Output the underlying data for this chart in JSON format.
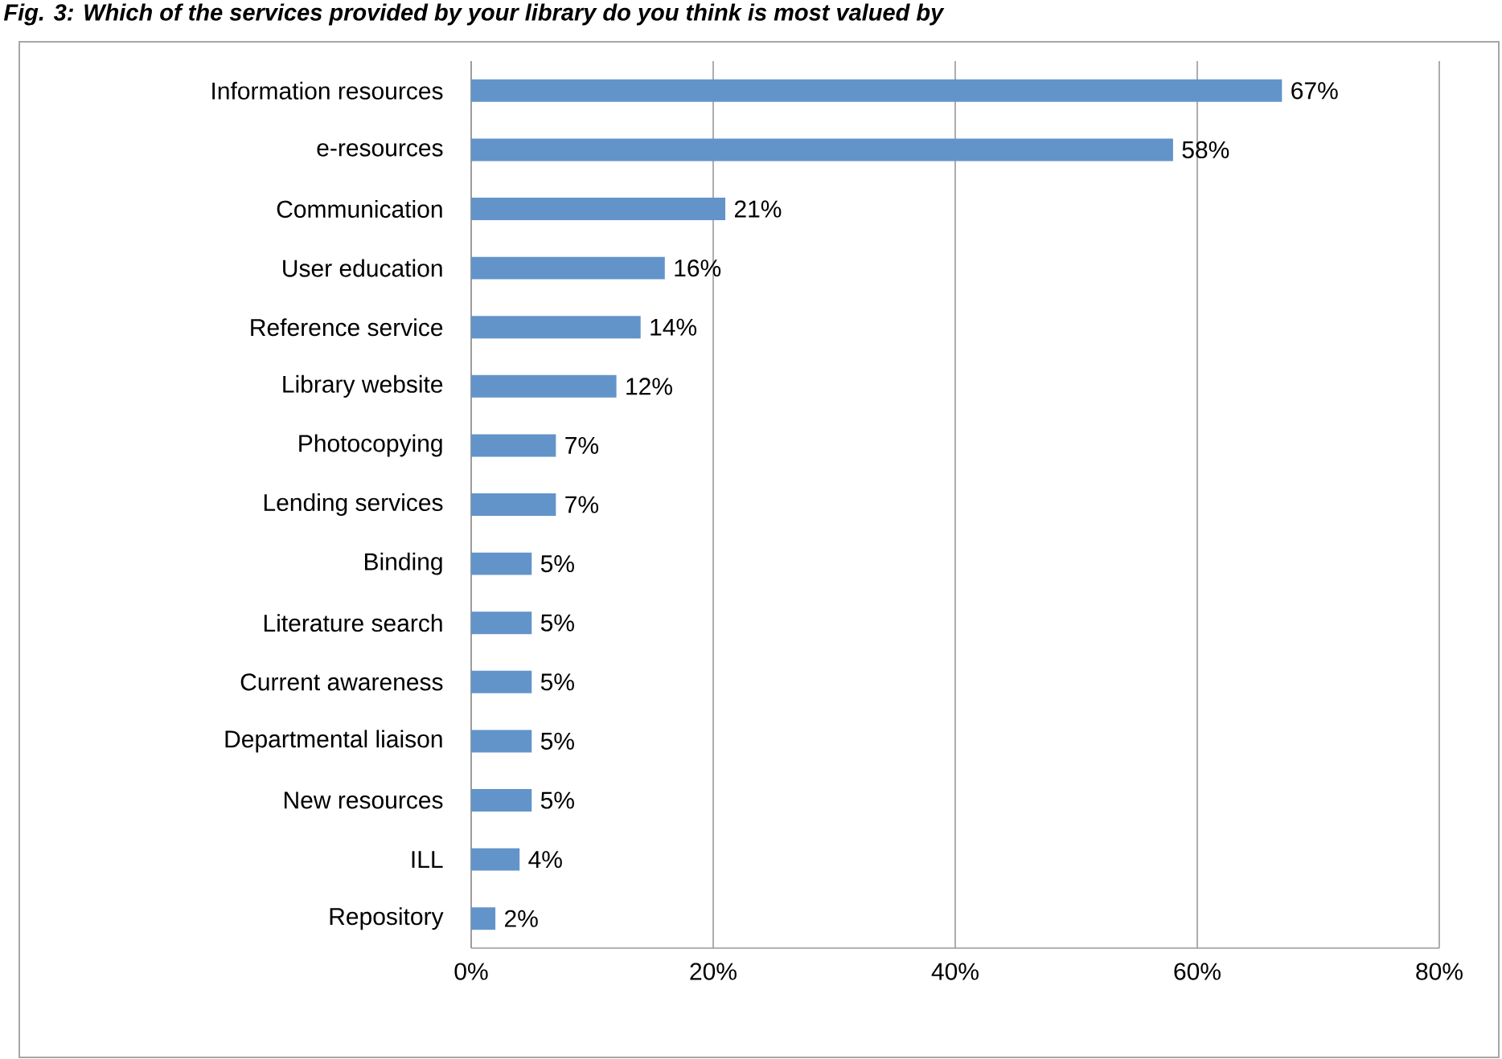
{
  "chart_data": {
    "type": "bar",
    "orientation": "horizontal",
    "title": "Fig. 3: Which of the services provided by your library do you think is most valued by",
    "categories": [
      "Information resources",
      "e-resources",
      "Communication",
      "User education",
      "Reference service",
      "Library website",
      "Photocopying",
      "Lending services",
      "Binding",
      "Literature search",
      "Current awareness",
      "Departmental liaison",
      "New resources",
      "ILL",
      "Repository"
    ],
    "values": [
      67,
      58,
      21,
      16,
      14,
      12,
      7,
      7,
      5,
      5,
      5,
      5,
      5,
      4,
      2
    ],
    "value_labels": [
      "67%",
      "58%",
      "21%",
      "16%",
      "14%",
      "12%",
      "7%",
      "7%",
      "5%",
      "5%",
      "5%",
      "5%",
      "5%",
      "4%",
      "2%"
    ],
    "color": "#6294ca",
    "xlim": [
      0,
      80
    ],
    "xticks": [
      {
        "value": 0,
        "label": "0%"
      },
      {
        "value": 20,
        "label": "20%"
      },
      {
        "value": 40,
        "label": "40%"
      },
      {
        "value": 60,
        "label": "60%"
      },
      {
        "value": 80,
        "label": "80%"
      }
    ],
    "grid": "x"
  }
}
